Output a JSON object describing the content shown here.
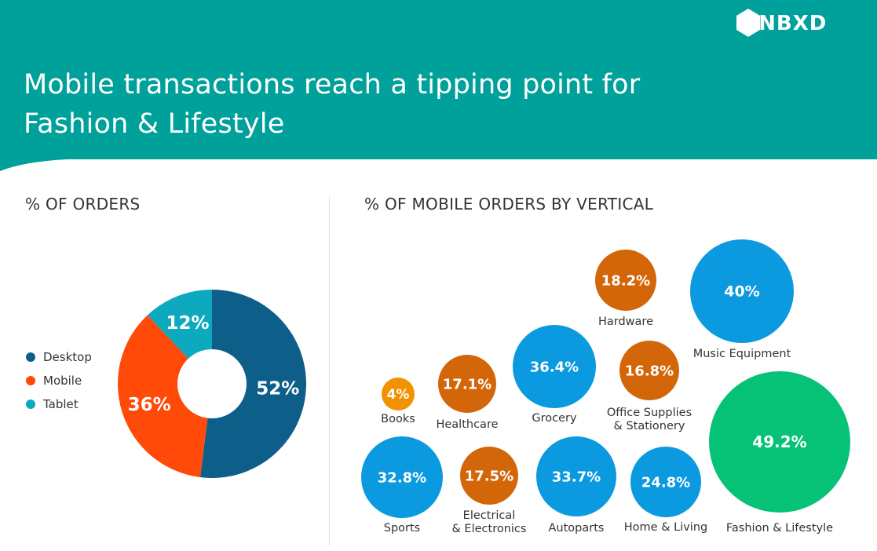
{
  "header": {
    "title_line_1": "Mobile transactions reach a tipping point for",
    "title_line_2": "Fashion & Lifestyle",
    "brand": "UNBXD",
    "background": "#00A19A"
  },
  "chart_data": [
    {
      "type": "pie",
      "title": "% OF ORDERS",
      "donut": true,
      "categories": [
        "Desktop",
        "Mobile",
        "Tablet"
      ],
      "values": [
        52,
        36,
        12
      ],
      "value_labels": [
        "52%",
        "36%",
        "12%"
      ],
      "colors": [
        "#0D5F8A",
        "#FF4A0A",
        "#0DA9BE"
      ],
      "legend_position": "left"
    },
    {
      "type": "bubble",
      "title": "% OF MOBILE ORDERS BY VERTICAL",
      "categories": [
        "Books",
        "Healthcare",
        "Grocery",
        "Hardware",
        "Office Supplies & Stationery",
        "Music Equipment",
        "Fashion & Lifestyle",
        "Sports",
        "Electrical & Electronics",
        "Autoparts",
        "Home & Living"
      ],
      "label_lines": [
        [
          "Books"
        ],
        [
          "Healthcare"
        ],
        [
          "Grocery"
        ],
        [
          "Hardware"
        ],
        [
          "Office Supplies",
          "& Stationery"
        ],
        [
          "Music Equipment"
        ],
        [
          "Fashion & Lifestyle"
        ],
        [
          "Sports"
        ],
        [
          "Electrical",
          "& Electronics"
        ],
        [
          "Autoparts"
        ],
        [
          "Home & Living"
        ]
      ],
      "values": [
        4,
        17.1,
        36.4,
        18.2,
        16.8,
        40,
        49.2,
        32.8,
        17.5,
        33.7,
        24.8
      ],
      "value_labels": [
        "4%",
        "17.1%",
        "36.4%",
        "18.2%",
        "16.8%",
        "40%",
        "49.2%",
        "32.8%",
        "17.5%",
        "33.7%",
        "24.8%"
      ],
      "colors": [
        "#F39200",
        "#D4660A",
        "#0B9ADF",
        "#D4660A",
        "#D4660A",
        "#0B9ADF",
        "#05C277",
        "#0B9ADF",
        "#D4660A",
        "#0B9ADF",
        "#0B9ADF"
      ]
    }
  ]
}
